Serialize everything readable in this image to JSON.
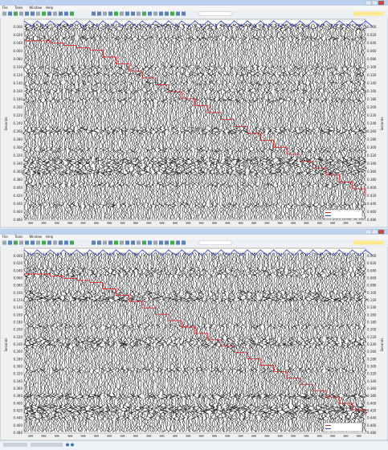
{
  "windows": [
    {
      "menu": [
        "File",
        "Tools",
        "Window",
        "Help"
      ],
      "y_axis_label": "Seconds",
      "y_labels": [
        "0.000",
        "0.020",
        "0.040",
        "0.060",
        "0.080",
        "0.100",
        "0.120",
        "0.140",
        "0.160",
        "0.180",
        "0.200",
        "0.220",
        "0.240",
        "0.260",
        "0.280",
        "0.300",
        "0.320",
        "0.340",
        "0.360",
        "0.380",
        "0.400",
        "0.420",
        "0.440",
        "0.460",
        "0.480"
      ]
    },
    {
      "menu": [
        "File",
        "Tools",
        "Window",
        "Help"
      ],
      "y_axis_label": "Seconds",
      "y_labels": [
        "0.000",
        "0.020",
        "0.040",
        "0.060",
        "0.080",
        "0.100",
        "0.120",
        "0.140",
        "0.160",
        "0.180",
        "0.200",
        "0.220",
        "0.240",
        "0.260",
        "0.280",
        "0.300",
        "0.320",
        "0.340",
        "0.360",
        "0.380",
        "0.400",
        "0.420",
        "0.440",
        "0.460",
        "0.480"
      ]
    }
  ]
}
